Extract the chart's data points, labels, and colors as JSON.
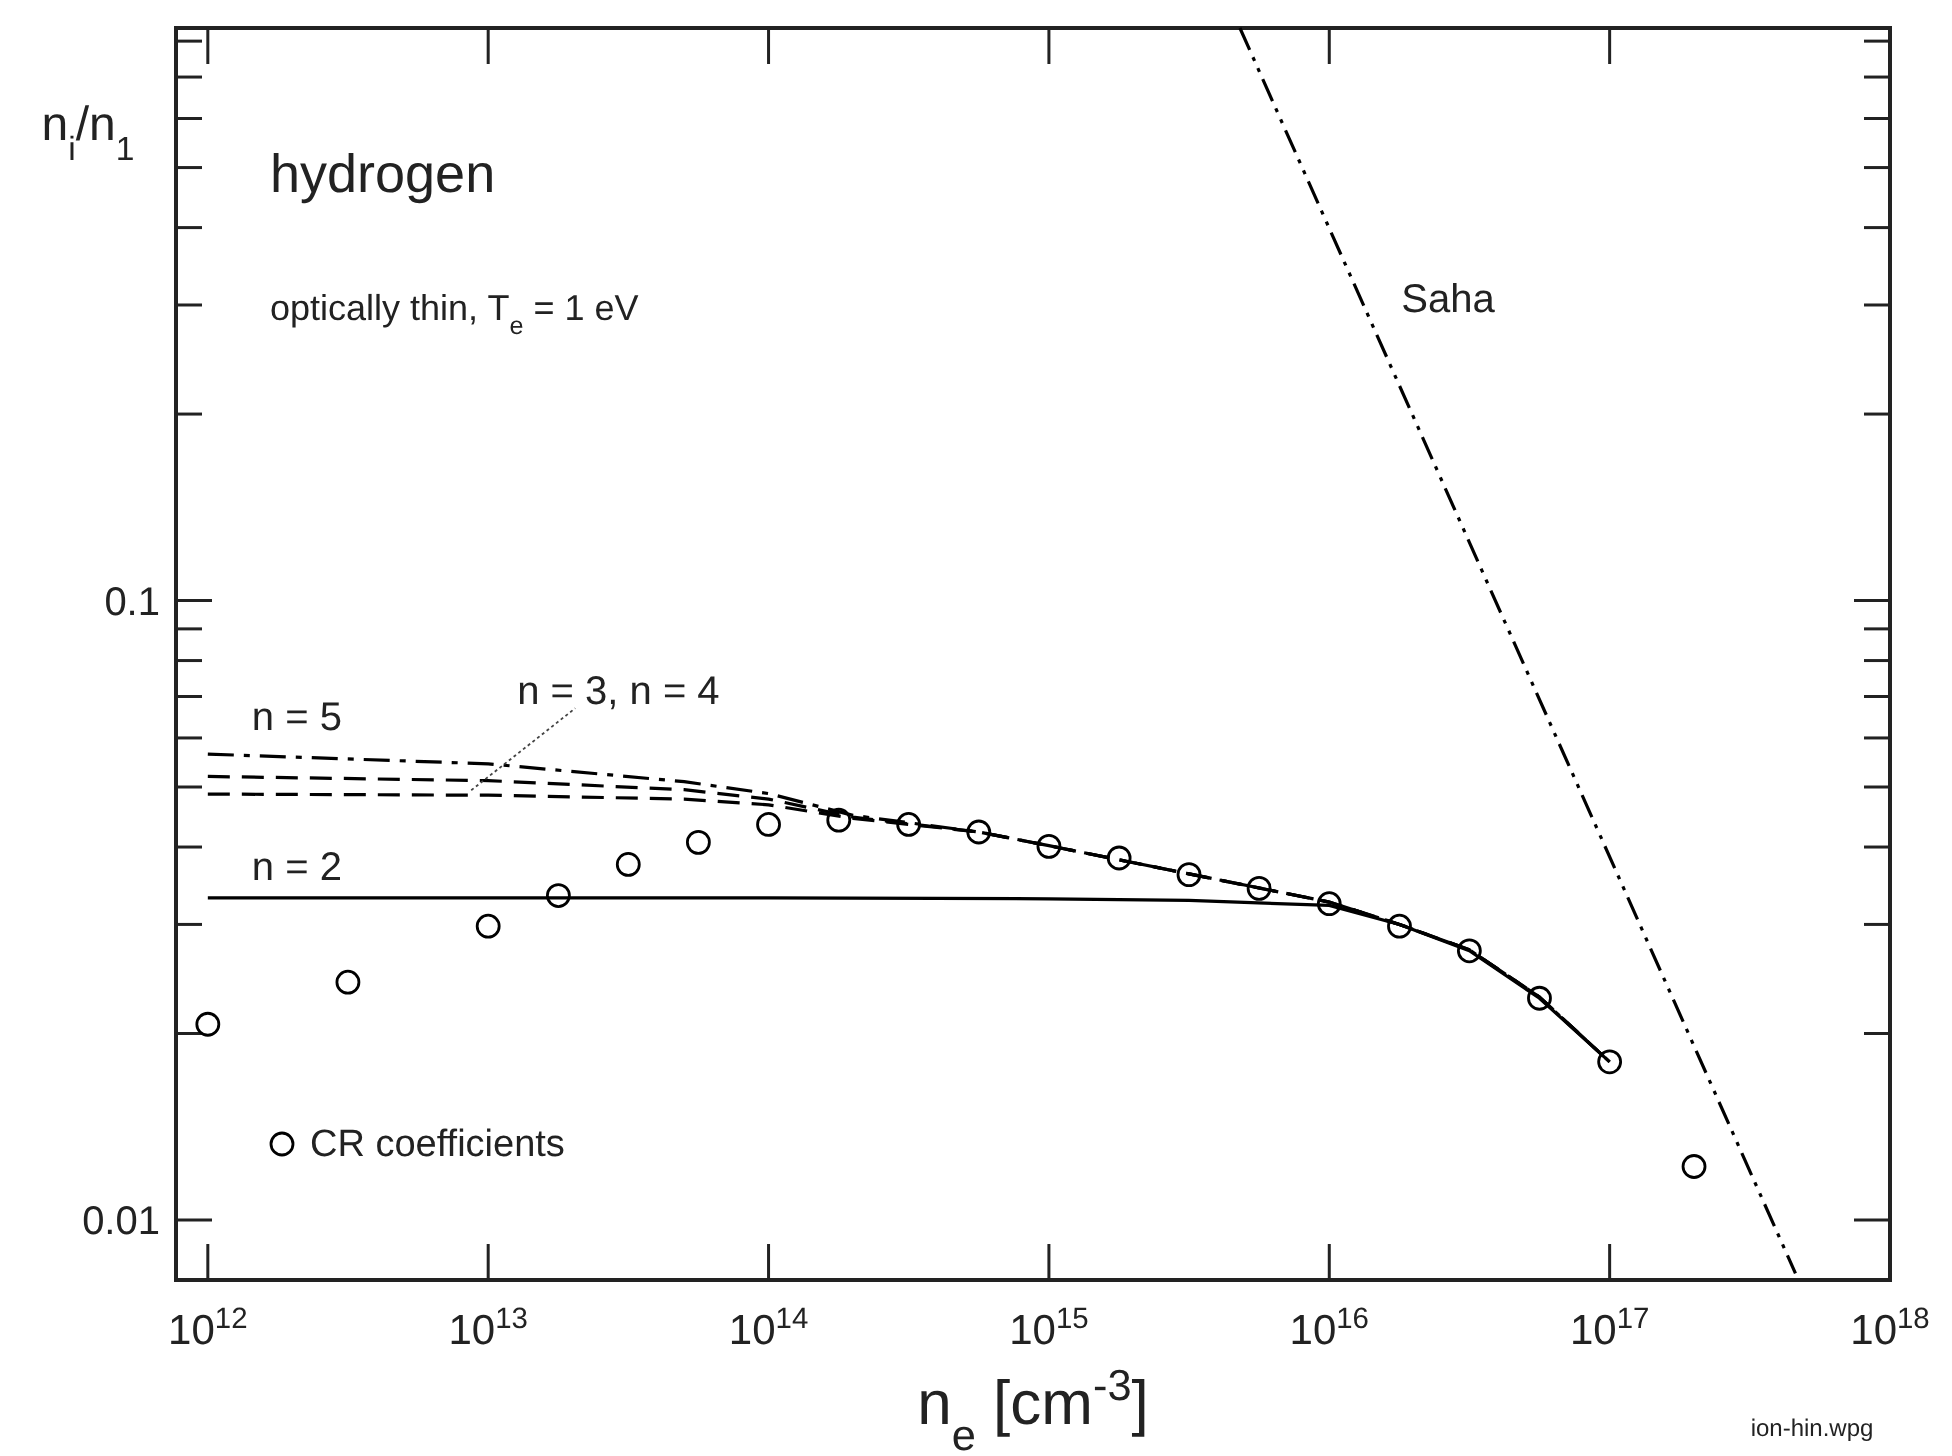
{
  "chart_data": {
    "type": "line",
    "xlabel": "n$_{e}$ [cm$^{-3}$]",
    "ylabel": "n$_{i}$/n$_{1}$",
    "log": "xy",
    "grid": false,
    "legend": "bottom left",
    "xlim": [
      770000000000.0,
      1e+18
    ],
    "ylim": [
      0.008,
      0.84
    ],
    "xticks": [
      {
        "value": 1000000000000.0,
        "label": "10$^{12}$"
      },
      {
        "value": 10000000000000.0,
        "label": "10$^{13}$"
      },
      {
        "value": 100000000000000.0,
        "label": "10$^{14}$"
      },
      {
        "value": 1000000000000000.0,
        "label": "10$^{15}$"
      },
      {
        "value": 1e+16,
        "label": "10$^{16}$"
      },
      {
        "value": 1e+17,
        "label": "10$^{17}$"
      },
      {
        "value": 1e+18,
        "label": "10$^{18}$"
      }
    ],
    "yticks": [
      0.01,
      {
        "value": 0.02,
        "label": null
      },
      {
        "value": 0.03,
        "label": null
      },
      {
        "value": 0.04,
        "label": null
      },
      {
        "value": 0.05,
        "label": null
      },
      {
        "value": 0.06,
        "label": null
      },
      {
        "value": 0.07,
        "label": null
      },
      {
        "value": 0.08,
        "label": null
      },
      {
        "value": 0.09,
        "label": null
      },
      0.1,
      {
        "value": 0.2,
        "label": null
      },
      {
        "value": 0.3,
        "label": null
      },
      {
        "value": 0.4,
        "label": null
      },
      {
        "value": 0.5,
        "label": null
      },
      {
        "value": 0.6,
        "label": null
      },
      {
        "value": 0.7,
        "label": null
      },
      {
        "value": 0.8,
        "label": null
      }
    ],
    "series": [
      {
        "color": "#000000",
        "line_style": "solid",
        "x": [
          1000000000000.0,
          10000000000000.0,
          100000000000000.0,
          1000000000000000.0,
          3160000000000000.0,
          1e+16,
          1.78e+16,
          3.16e+16,
          5.62e+16,
          1e+17
        ],
        "values": [
          0.0331,
          0.0331,
          0.0331,
          0.033,
          0.0328,
          0.0322,
          0.03,
          0.0272,
          0.0228,
          0.018
        ]
      },
      {
        "color": "#000000",
        "line_style": "dashed",
        "x": [
          1000000000000.0,
          10000000000000.0,
          50000000000000.0,
          100000000000000.0,
          200000000000000.0,
          562000000000000.0,
          1000000000000000.0,
          3160000000000000.0,
          1e+16,
          1.78e+16,
          3.16e+16,
          5.62e+16,
          1e+17
        ],
        "values": [
          0.0487,
          0.0485,
          0.0478,
          0.0468,
          0.0445,
          0.0423,
          0.0402,
          0.0362,
          0.0326,
          0.03,
          0.0273,
          0.0229,
          0.018
        ]
      },
      {
        "color": "#000000",
        "line_style": "dashed",
        "x": [
          1000000000000.0,
          10000000000000.0,
          50000000000000.0,
          100000000000000.0,
          200000000000000.0,
          562000000000000.0,
          1000000000000000.0,
          3160000000000000.0,
          1e+16,
          1.78e+16,
          3.16e+16,
          5.62e+16,
          1e+17
        ],
        "values": [
          0.052,
          0.0512,
          0.0495,
          0.0478,
          0.0447,
          0.0423,
          0.0402,
          0.0362,
          0.0326,
          0.03,
          0.0273,
          0.0229,
          0.018
        ]
      },
      {
        "color": "#000000",
        "line_style": "dashdot",
        "x": [
          1000000000000.0,
          10000000000000.0,
          50000000000000.0,
          100000000000000.0,
          200000000000000.0,
          562000000000000.0,
          1000000000000000.0,
          3160000000000000.0,
          1e+16,
          1.78e+16,
          3.16e+16,
          5.62e+16,
          1e+17
        ],
        "values": [
          0.0565,
          0.0545,
          0.051,
          0.0488,
          0.045,
          0.0423,
          0.0402,
          0.0362,
          0.0326,
          0.03,
          0.0273,
          0.0229,
          0.018
        ]
      },
      {
        "color": "#000000",
        "line_style": "dashdotdot",
        "x": [
          4800000000000000.0,
          4.6e+17
        ],
        "values": [
          0.84,
          0.0082
        ]
      },
      {
        "type": "scatter",
        "name": "CR coefficients",
        "color": "#000000",
        "marker": "circle",
        "x": [
          1000000000000.0,
          3160000000000.0,
          10000000000000.0,
          17800000000000.0,
          31600000000000.0,
          56200000000000.0,
          100000000000000.0,
          178000000000000.0,
          316000000000000.0,
          562000000000000.0,
          1000000000000000.0,
          1780000000000000.0,
          3160000000000000.0,
          5620000000000000.0,
          1e+16,
          1.78e+16,
          3.16e+16,
          5.62e+16,
          1e+17,
          2e+17
        ],
        "values": [
          0.0207,
          0.0242,
          0.0298,
          0.0334,
          0.0375,
          0.0407,
          0.0435,
          0.0442,
          0.0435,
          0.0423,
          0.0401,
          0.0384,
          0.0361,
          0.0343,
          0.0324,
          0.0298,
          0.0272,
          0.0228,
          0.018,
          0.0122
        ]
      }
    ],
    "annotations": [
      "hydrogen",
      "optically thin, T$_{e}$ = 1 eV",
      {
        "text": "Saha",
        "x": 1.3e+16,
        "y": 0.31
      },
      {
        "text": "n = 5",
        "x": 1000000000000.0,
        "y": 0.0565
      },
      {
        "text": "n = 3, n = 4",
        "x": 8700000000000.0,
        "y": 0.0494
      },
      {
        "text": "n = 2",
        "x": 1000000000000.0,
        "y": 0.0331
      },
      "ion-hin.wpg"
    ]
  }
}
